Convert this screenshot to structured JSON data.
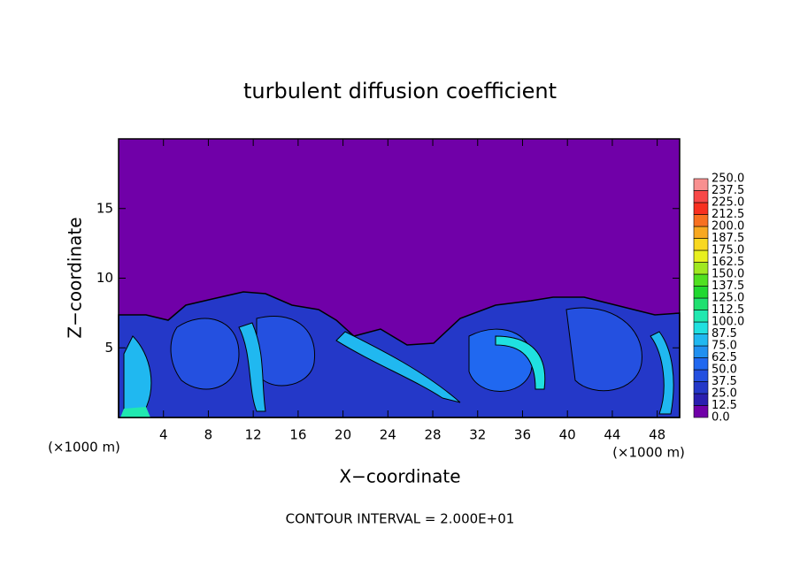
{
  "chart_data": {
    "type": "contour",
    "title": "turbulent diffusion coefficient",
    "xlabel": "X−coordinate",
    "ylabel": "Z−coordinate",
    "x_unit_labels": [
      "(×1000 m)",
      "(×1000 m)"
    ],
    "annotation": "CONTOUR INTERVAL = 2.000E+01",
    "xlim": [
      0,
      50
    ],
    "xticks": [
      4,
      8,
      12,
      16,
      20,
      24,
      28,
      32,
      36,
      40,
      44,
      48
    ],
    "ylim": [
      0,
      20
    ],
    "yticks": [
      5,
      10,
      15
    ],
    "colorbar": {
      "levels": [
        {
          "value": 0,
          "label": "0.0"
        },
        12.5,
        {
          "value": 25,
          "label": "25.0"
        },
        37.5,
        {
          "value": 50,
          "label": "50.0"
        },
        62.5,
        {
          "value": 75,
          "label": "75.0"
        },
        87.5,
        {
          "value": 100,
          "label": "100.0"
        },
        112.5,
        {
          "value": 125,
          "label": "125.0"
        },
        137.5,
        {
          "value": 150,
          "label": "150.0"
        },
        162.5,
        {
          "value": 175,
          "label": "175.0"
        },
        187.5,
        {
          "value": 200,
          "label": "200.0"
        },
        212.5,
        {
          "value": 225,
          "label": "225.0"
        },
        237.5,
        {
          "value": 250,
          "label": "250.0"
        }
      ],
      "colors": [
        "#7000a8",
        "#2a1fb0",
        "#2438c8",
        "#2450e0",
        "#2068f0",
        "#2090f0",
        "#20b8f0",
        "#20e0e0",
        "#20e8b0",
        "#20e070",
        "#20d830",
        "#50e020",
        "#a0e820",
        "#e8f020",
        "#f8d820",
        "#f8a820",
        "#f87020",
        "#f83020",
        "#f84848",
        "#f89090"
      ]
    }
  }
}
